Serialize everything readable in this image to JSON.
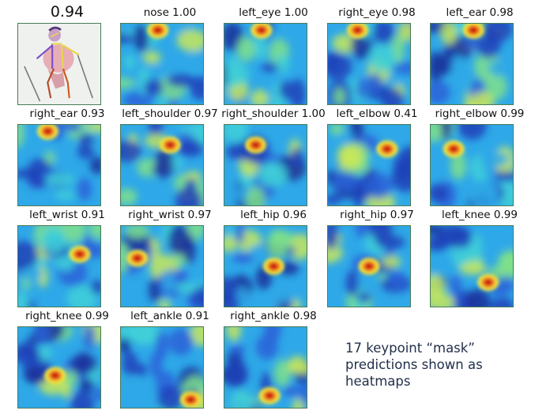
{
  "overall_score": "0.94",
  "note": "17 keypoint “mask” predictions shown as heatmaps",
  "keypoints": [
    {
      "label": "nose 1.00",
      "peak": [
        0.45,
        0.08
      ],
      "strength": 1.0
    },
    {
      "label": "left_eye 1.00",
      "peak": [
        0.45,
        0.08
      ],
      "strength": 1.0
    },
    {
      "label": "right_eye 0.98",
      "peak": [
        0.36,
        0.08
      ],
      "strength": 0.98
    },
    {
      "label": "left_ear 0.98",
      "peak": [
        0.52,
        0.08
      ],
      "strength": 0.98
    },
    {
      "label": "right_ear 0.93",
      "peak": [
        0.36,
        0.08
      ],
      "strength": 0.93
    },
    {
      "label": "left_shoulder 0.97",
      "peak": [
        0.6,
        0.25
      ],
      "strength": 0.97
    },
    {
      "label": "right_shoulder 1.00",
      "peak": [
        0.38,
        0.25
      ],
      "strength": 1.0
    },
    {
      "label": "left_elbow 0.41",
      "peak": [
        0.72,
        0.3
      ],
      "strength": 0.41
    },
    {
      "label": "right_elbow 0.99",
      "peak": [
        0.28,
        0.3
      ],
      "strength": 0.99
    },
    {
      "label": "left_wrist 0.91",
      "peak": [
        0.75,
        0.35
      ],
      "strength": 0.91
    },
    {
      "label": "right_wrist 0.97",
      "peak": [
        0.2,
        0.4
      ],
      "strength": 0.97
    },
    {
      "label": "left_hip 0.96",
      "peak": [
        0.6,
        0.5
      ],
      "strength": 0.96
    },
    {
      "label": "right_hip 0.97",
      "peak": [
        0.5,
        0.5
      ],
      "strength": 0.97
    },
    {
      "label": "left_knee 0.99",
      "peak": [
        0.7,
        0.7
      ],
      "strength": 0.99
    },
    {
      "label": "right_knee 0.99",
      "peak": [
        0.45,
        0.6
      ],
      "strength": 0.99
    },
    {
      "label": "left_ankle 0.91",
      "peak": [
        0.85,
        0.9
      ],
      "strength": 0.91
    },
    {
      "label": "right_ankle 0.98",
      "peak": [
        0.55,
        0.85
      ],
      "strength": 0.98
    }
  ]
}
